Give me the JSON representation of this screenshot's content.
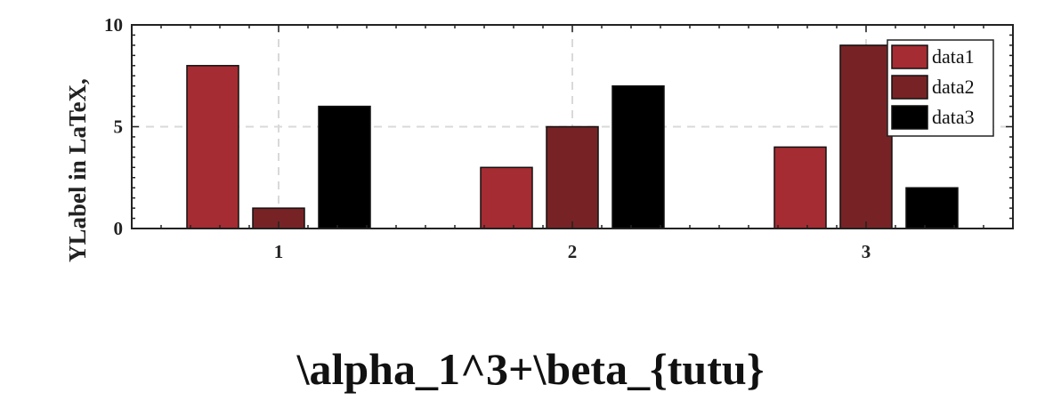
{
  "chart_data": {
    "type": "bar",
    "categories": [
      "1",
      "2",
      "3"
    ],
    "series": [
      {
        "name": "data1",
        "values": [
          8,
          3,
          4
        ],
        "color": "#a52c32"
      },
      {
        "name": "data2",
        "values": [
          1,
          5,
          9
        ],
        "color": "#772325"
      },
      {
        "name": "data3",
        "values": [
          6,
          7,
          2
        ],
        "color": "#000000"
      }
    ],
    "yticks": [
      "0",
      "5",
      "10"
    ],
    "ylim": [
      0,
      10
    ],
    "xlabel": "\\alpha_1^3+\\beta_{tutu}",
    "ylabel": "YLabel in LaTeX, ",
    "grid": true,
    "legend_position": "top-right"
  }
}
